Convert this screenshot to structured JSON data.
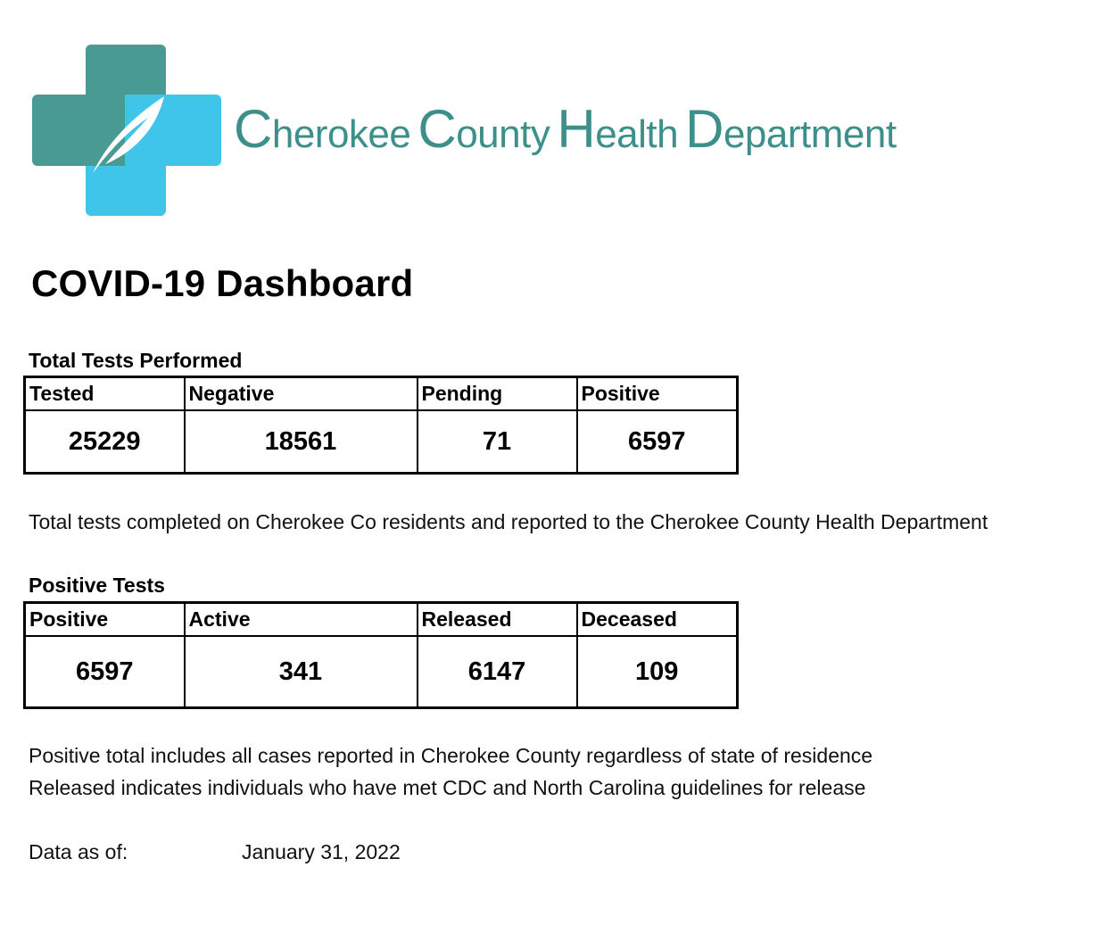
{
  "logo": {
    "org_name_parts": [
      {
        "initial": "C",
        "rest": "herokee"
      },
      {
        "initial": "C",
        "rest": "ounty"
      },
      {
        "initial": "H",
        "rest": "ealth"
      },
      {
        "initial": "D",
        "rest": "epartment"
      }
    ],
    "colors": {
      "brand": "#3d8f8a",
      "cross_dark": "#4a9a94",
      "cross_light": "#3fc4ea",
      "leaf": "#ffffff"
    },
    "icon": "medical-cross-leaf-icon"
  },
  "title": "COVID-19 Dashboard",
  "total_tests": {
    "label": "Total Tests Performed",
    "headers": [
      "Tested",
      "Negative",
      "Pending",
      "Positive"
    ],
    "values": [
      "25229",
      "18561",
      "71",
      "6597"
    ],
    "note": "Total tests completed on Cherokee Co residents and reported to the Cherokee County Health Department"
  },
  "positive_tests": {
    "label": "Positive Tests",
    "headers": [
      "Positive",
      "Active",
      "Released",
      "Deceased"
    ],
    "values": [
      "6597",
      "341",
      "6147",
      "109"
    ],
    "notes": [
      "Positive total includes all cases reported in Cherokee County regardless of state of residence",
      "Released indicates individuals who have met CDC and North Carolina guidelines for release"
    ]
  },
  "data_as_of": {
    "label": "Data as of:",
    "value": "January 31, 2022"
  }
}
